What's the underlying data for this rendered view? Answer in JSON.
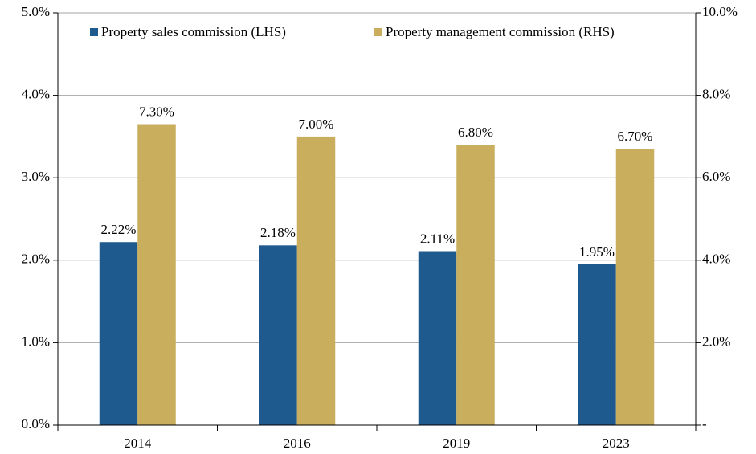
{
  "chart_data": {
    "type": "bar",
    "categories": [
      "2014",
      "2016",
      "2019",
      "2023"
    ],
    "series": [
      {
        "name": "Property sales commission (LHS)",
        "color": "#1f5a8f",
        "values": [
          2.22,
          2.18,
          2.11,
          1.95
        ],
        "value_labels": [
          "2.22%",
          "2.18%",
          "2.11%",
          "1.95%"
        ]
      },
      {
        "name": "Property management commission (RHS)",
        "color": "#c9ae5d",
        "values": [
          7.3,
          7.0,
          6.8,
          6.7
        ],
        "value_labels": [
          "7.30%",
          "7.00%",
          "6.80%",
          "6.70%"
        ],
        "axis": "y2"
      }
    ],
    "ylim": [
      0,
      5
    ],
    "yticks": [
      {
        "value": 0,
        "label": "0.0%"
      },
      {
        "value": 1,
        "label": "1.0%"
      },
      {
        "value": 2,
        "label": "2.0%"
      },
      {
        "value": 3,
        "label": "3.0%"
      },
      {
        "value": 4,
        "label": "4.0%"
      },
      {
        "value": 5,
        "label": "5.0%"
      }
    ],
    "y2lim": [
      0,
      10
    ],
    "y2ticks": [
      {
        "value": 0,
        "label": "-"
      },
      {
        "value": 2,
        "label": "2.0%"
      },
      {
        "value": 4,
        "label": "4.0%"
      },
      {
        "value": 6,
        "label": "6.0%"
      },
      {
        "value": 8,
        "label": "8.0%"
      },
      {
        "value": 10,
        "label": "10.0%"
      }
    ],
    "grid": true,
    "legend": "top"
  }
}
